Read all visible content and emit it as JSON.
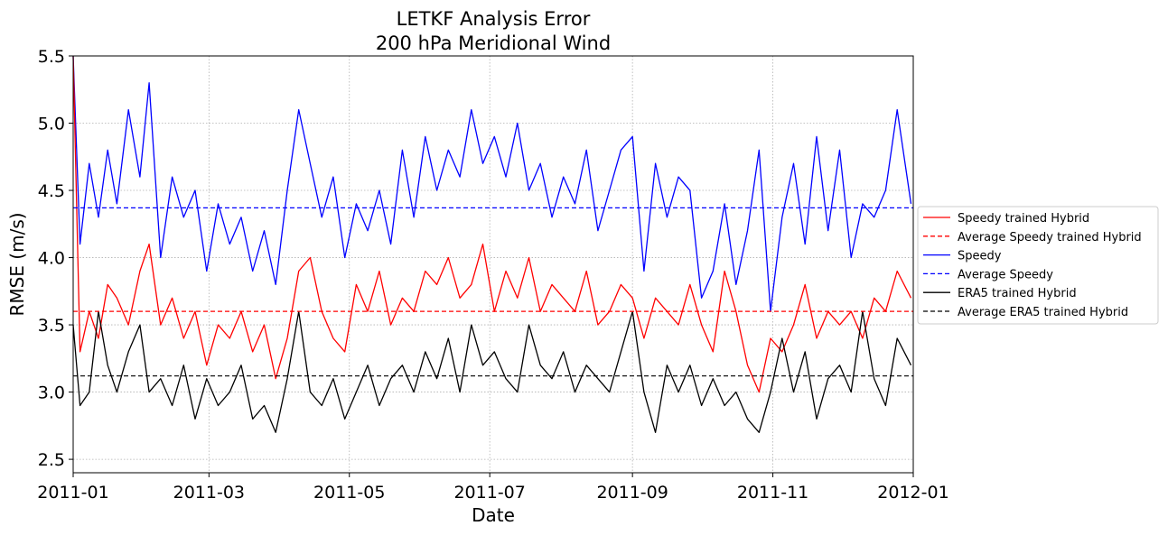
{
  "chart_data": {
    "type": "line",
    "title": "LETKF Analysis Error",
    "subtitle": "200 hPa Meridional Wind",
    "xlabel": "Date",
    "ylabel": "RMSE (m/s)",
    "xlim": [
      "2011-01-01",
      "2012-01-01"
    ],
    "ylim": [
      2.4,
      5.5
    ],
    "grid": true,
    "legend_position": "right-outside",
    "x_ticks": [
      "2011-01",
      "2011-03",
      "2011-05",
      "2011-07",
      "2011-09",
      "2011-11",
      "2012-01"
    ],
    "y_ticks": [
      "2.5",
      "3.0",
      "3.5",
      "4.0",
      "4.5",
      "5.0",
      "5.5"
    ],
    "series": [
      {
        "name": "Speedy trained Hybrid",
        "color": "#ff0000",
        "style": "solid",
        "x": [
          "2011-01-01",
          "2011-01-04",
          "2011-01-08",
          "2011-01-12",
          "2011-01-16",
          "2011-01-20",
          "2011-01-25",
          "2011-01-30",
          "2011-02-03",
          "2011-02-08",
          "2011-02-13",
          "2011-02-18",
          "2011-02-23",
          "2011-02-28",
          "2011-03-05",
          "2011-03-10",
          "2011-03-15",
          "2011-03-20",
          "2011-03-25",
          "2011-03-30",
          "2011-04-04",
          "2011-04-09",
          "2011-04-14",
          "2011-04-19",
          "2011-04-24",
          "2011-04-29",
          "2011-05-04",
          "2011-05-09",
          "2011-05-14",
          "2011-05-19",
          "2011-05-24",
          "2011-05-29",
          "2011-06-03",
          "2011-06-08",
          "2011-06-13",
          "2011-06-18",
          "2011-06-23",
          "2011-06-28",
          "2011-07-03",
          "2011-07-08",
          "2011-07-13",
          "2011-07-18",
          "2011-07-23",
          "2011-07-28",
          "2011-08-02",
          "2011-08-07",
          "2011-08-12",
          "2011-08-17",
          "2011-08-22",
          "2011-08-27",
          "2011-09-01",
          "2011-09-06",
          "2011-09-11",
          "2011-09-16",
          "2011-09-21",
          "2011-09-26",
          "2011-10-01",
          "2011-10-06",
          "2011-10-11",
          "2011-10-16",
          "2011-10-21",
          "2011-10-26",
          "2011-10-31",
          "2011-11-05",
          "2011-11-10",
          "2011-11-15",
          "2011-11-20",
          "2011-11-25",
          "2011-11-30",
          "2011-12-05",
          "2011-12-10",
          "2011-12-15",
          "2011-12-20",
          "2011-12-25",
          "2011-12-31"
        ],
        "y": [
          5.5,
          3.3,
          3.6,
          3.4,
          3.8,
          3.7,
          3.5,
          3.9,
          4.1,
          3.5,
          3.7,
          3.4,
          3.6,
          3.2,
          3.5,
          3.4,
          3.6,
          3.3,
          3.5,
          3.1,
          3.4,
          3.9,
          4.0,
          3.6,
          3.4,
          3.3,
          3.8,
          3.6,
          3.9,
          3.5,
          3.7,
          3.6,
          3.9,
          3.8,
          4.0,
          3.7,
          3.8,
          4.1,
          3.6,
          3.9,
          3.7,
          4.0,
          3.6,
          3.8,
          3.7,
          3.6,
          3.9,
          3.5,
          3.6,
          3.8,
          3.7,
          3.4,
          3.7,
          3.6,
          3.5,
          3.8,
          3.5,
          3.3,
          3.9,
          3.6,
          3.2,
          3.0,
          3.4,
          3.3,
          3.5,
          3.8,
          3.4,
          3.6,
          3.5,
          3.6,
          3.4,
          3.7,
          3.6,
          3.9,
          3.7
        ]
      },
      {
        "name": "Average Speedy trained Hybrid",
        "color": "#ff0000",
        "style": "dashed",
        "constant": 3.6
      },
      {
        "name": "Speedy",
        "color": "#0000ff",
        "style": "solid",
        "x": [
          "2011-01-01",
          "2011-01-04",
          "2011-01-08",
          "2011-01-12",
          "2011-01-16",
          "2011-01-20",
          "2011-01-25",
          "2011-01-30",
          "2011-02-03",
          "2011-02-08",
          "2011-02-13",
          "2011-02-18",
          "2011-02-23",
          "2011-02-28",
          "2011-03-05",
          "2011-03-10",
          "2011-03-15",
          "2011-03-20",
          "2011-03-25",
          "2011-03-30",
          "2011-04-04",
          "2011-04-09",
          "2011-04-14",
          "2011-04-19",
          "2011-04-24",
          "2011-04-29",
          "2011-05-04",
          "2011-05-09",
          "2011-05-14",
          "2011-05-19",
          "2011-05-24",
          "2011-05-29",
          "2011-06-03",
          "2011-06-08",
          "2011-06-13",
          "2011-06-18",
          "2011-06-23",
          "2011-06-28",
          "2011-07-03",
          "2011-07-08",
          "2011-07-13",
          "2011-07-18",
          "2011-07-23",
          "2011-07-28",
          "2011-08-02",
          "2011-08-07",
          "2011-08-12",
          "2011-08-17",
          "2011-08-22",
          "2011-08-27",
          "2011-09-01",
          "2011-09-06",
          "2011-09-11",
          "2011-09-16",
          "2011-09-21",
          "2011-09-26",
          "2011-10-01",
          "2011-10-06",
          "2011-10-11",
          "2011-10-16",
          "2011-10-21",
          "2011-10-26",
          "2011-10-31",
          "2011-11-05",
          "2011-11-10",
          "2011-11-15",
          "2011-11-20",
          "2011-11-25",
          "2011-11-30",
          "2011-12-05",
          "2011-12-10",
          "2011-12-15",
          "2011-12-20",
          "2011-12-25",
          "2011-12-31"
        ],
        "y": [
          5.5,
          4.1,
          4.7,
          4.3,
          4.8,
          4.4,
          5.1,
          4.6,
          5.3,
          4.0,
          4.6,
          4.3,
          4.5,
          3.9,
          4.4,
          4.1,
          4.3,
          3.9,
          4.2,
          3.8,
          4.5,
          5.1,
          4.7,
          4.3,
          4.6,
          4.0,
          4.4,
          4.2,
          4.5,
          4.1,
          4.8,
          4.3,
          4.9,
          4.5,
          4.8,
          4.6,
          5.1,
          4.7,
          4.9,
          4.6,
          5.0,
          4.5,
          4.7,
          4.3,
          4.6,
          4.4,
          4.8,
          4.2,
          4.5,
          4.8,
          4.9,
          3.9,
          4.7,
          4.3,
          4.6,
          4.5,
          3.7,
          3.9,
          4.4,
          3.8,
          4.2,
          4.8,
          3.6,
          4.3,
          4.7,
          4.1,
          4.9,
          4.2,
          4.8,
          4.0,
          4.4,
          4.3,
          4.5,
          5.1,
          4.4
        ]
      },
      {
        "name": "Average Speedy",
        "color": "#0000ff",
        "style": "dashed",
        "constant": 4.37
      },
      {
        "name": "ERA5 trained Hybrid",
        "color": "#000000",
        "style": "solid",
        "x": [
          "2011-01-01",
          "2011-01-04",
          "2011-01-08",
          "2011-01-12",
          "2011-01-16",
          "2011-01-20",
          "2011-01-25",
          "2011-01-30",
          "2011-02-03",
          "2011-02-08",
          "2011-02-13",
          "2011-02-18",
          "2011-02-23",
          "2011-02-28",
          "2011-03-05",
          "2011-03-10",
          "2011-03-15",
          "2011-03-20",
          "2011-03-25",
          "2011-03-30",
          "2011-04-04",
          "2011-04-09",
          "2011-04-14",
          "2011-04-19",
          "2011-04-24",
          "2011-04-29",
          "2011-05-04",
          "2011-05-09",
          "2011-05-14",
          "2011-05-19",
          "2011-05-24",
          "2011-05-29",
          "2011-06-03",
          "2011-06-08",
          "2011-06-13",
          "2011-06-18",
          "2011-06-23",
          "2011-06-28",
          "2011-07-03",
          "2011-07-08",
          "2011-07-13",
          "2011-07-18",
          "2011-07-23",
          "2011-07-28",
          "2011-08-02",
          "2011-08-07",
          "2011-08-12",
          "2011-08-17",
          "2011-08-22",
          "2011-08-27",
          "2011-09-01",
          "2011-09-06",
          "2011-09-11",
          "2011-09-16",
          "2011-09-21",
          "2011-09-26",
          "2011-10-01",
          "2011-10-06",
          "2011-10-11",
          "2011-10-16",
          "2011-10-21",
          "2011-10-26",
          "2011-10-31",
          "2011-11-05",
          "2011-11-10",
          "2011-11-15",
          "2011-11-20",
          "2011-11-25",
          "2011-11-30",
          "2011-12-05",
          "2011-12-10",
          "2011-12-15",
          "2011-12-20",
          "2011-12-25",
          "2011-12-31"
        ],
        "y": [
          3.5,
          2.9,
          3.0,
          3.6,
          3.2,
          3.0,
          3.3,
          3.5,
          3.0,
          3.1,
          2.9,
          3.2,
          2.8,
          3.1,
          2.9,
          3.0,
          3.2,
          2.8,
          2.9,
          2.7,
          3.1,
          3.6,
          3.0,
          2.9,
          3.1,
          2.8,
          3.0,
          3.2,
          2.9,
          3.1,
          3.2,
          3.0,
          3.3,
          3.1,
          3.4,
          3.0,
          3.5,
          3.2,
          3.3,
          3.1,
          3.0,
          3.5,
          3.2,
          3.1,
          3.3,
          3.0,
          3.2,
          3.1,
          3.0,
          3.3,
          3.6,
          3.0,
          2.7,
          3.2,
          3.0,
          3.2,
          2.9,
          3.1,
          2.9,
          3.0,
          2.8,
          2.7,
          3.0,
          3.4,
          3.0,
          3.3,
          2.8,
          3.1,
          3.2,
          3.0,
          3.6,
          3.1,
          2.9,
          3.4,
          3.2
        ]
      },
      {
        "name": "Average ERA5 trained Hybrid",
        "color": "#000000",
        "style": "dashed",
        "constant": 3.12
      }
    ]
  }
}
